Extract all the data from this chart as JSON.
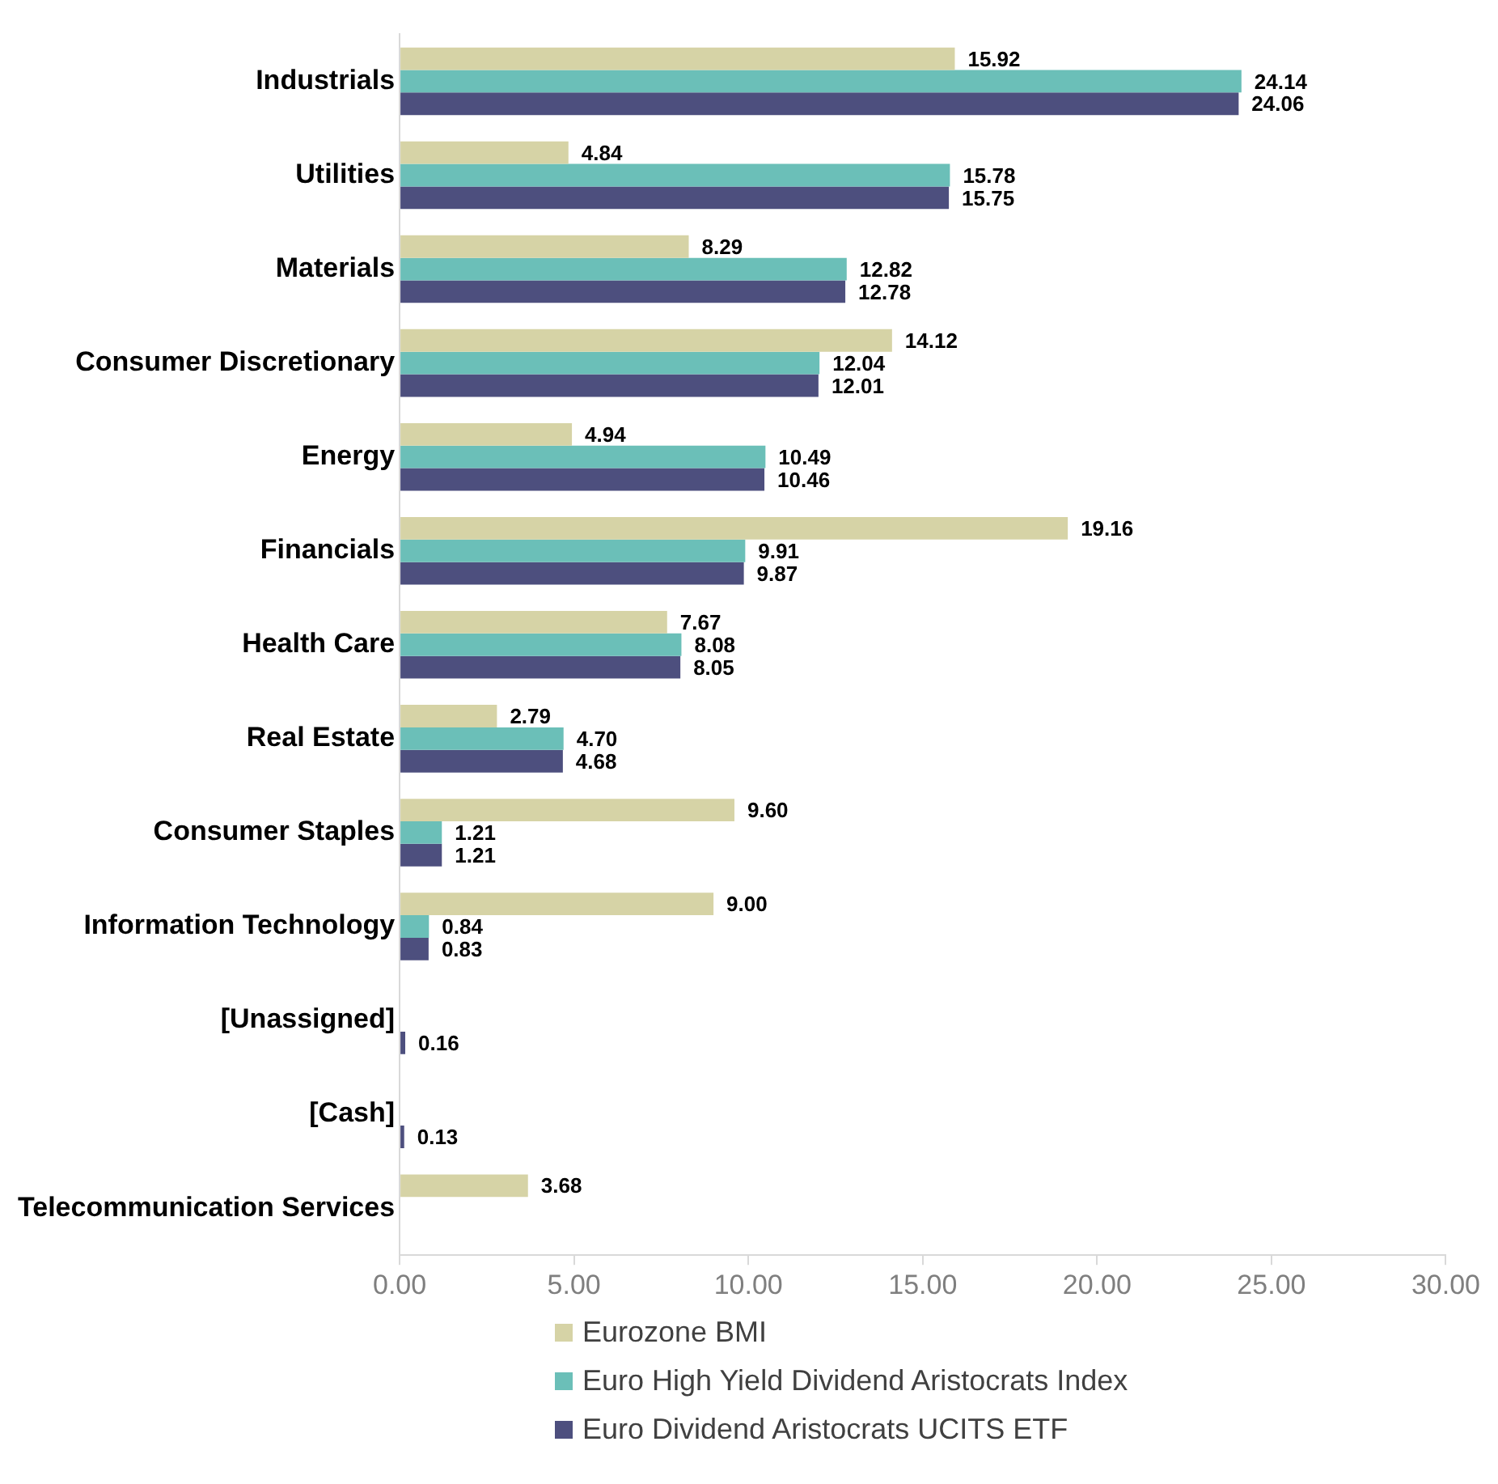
{
  "chart_data": {
    "type": "bar",
    "orientation": "horizontal",
    "categories": [
      "Industrials",
      "Utilities",
      "Materials",
      "Consumer Discretionary",
      "Energy",
      "Financials",
      "Health Care",
      "Real Estate",
      "Consumer Staples",
      "Information Technology",
      "[Unassigned]",
      "[Cash]",
      "Telecommunication Services"
    ],
    "series": [
      {
        "name": "Eurozone BMI",
        "color": "#d6d3a6",
        "values": [
          15.92,
          4.84,
          8.29,
          14.12,
          4.94,
          19.16,
          7.67,
          2.79,
          9.6,
          9.0,
          null,
          null,
          3.68
        ],
        "value_labels": [
          "15.92",
          "4.84",
          "8.29",
          "14.12",
          "4.94",
          "19.16",
          "7.67",
          "2.79",
          "9.60",
          "9.00",
          null,
          null,
          "3.68"
        ]
      },
      {
        "name": "Euro High Yield Dividend Aristocrats Index",
        "color": "#6bbfb8",
        "values": [
          24.14,
          15.78,
          12.82,
          12.04,
          10.49,
          9.91,
          8.08,
          4.7,
          1.21,
          0.84,
          null,
          null,
          null
        ],
        "value_labels": [
          "24.14",
          "15.78",
          "12.82",
          "12.04",
          "10.49",
          "9.91",
          "8.08",
          "4.70",
          "1.21",
          "0.84",
          null,
          null,
          null
        ]
      },
      {
        "name": "Euro Dividend Aristocrats UCITS ETF",
        "color": "#4d4f7e",
        "values": [
          24.06,
          15.75,
          12.78,
          12.01,
          10.46,
          9.87,
          8.05,
          4.68,
          1.21,
          0.83,
          0.16,
          0.13,
          null
        ],
        "value_labels": [
          "24.06",
          "15.75",
          "12.78",
          "12.01",
          "10.46",
          "9.87",
          "8.05",
          "4.68",
          "1.21",
          "0.83",
          "0.16",
          "0.13",
          null
        ]
      }
    ],
    "xlim": [
      0,
      30
    ],
    "xticks": [
      {
        "value": 0,
        "label": "0.00"
      },
      {
        "value": 5,
        "label": "5.00"
      },
      {
        "value": 10,
        "label": "10.00"
      },
      {
        "value": 15,
        "label": "15.00"
      },
      {
        "value": 20,
        "label": "20.00"
      },
      {
        "value": 25,
        "label": "25.00"
      },
      {
        "value": 30,
        "label": "30.00"
      }
    ],
    "grid": false,
    "legend": "bottom"
  }
}
